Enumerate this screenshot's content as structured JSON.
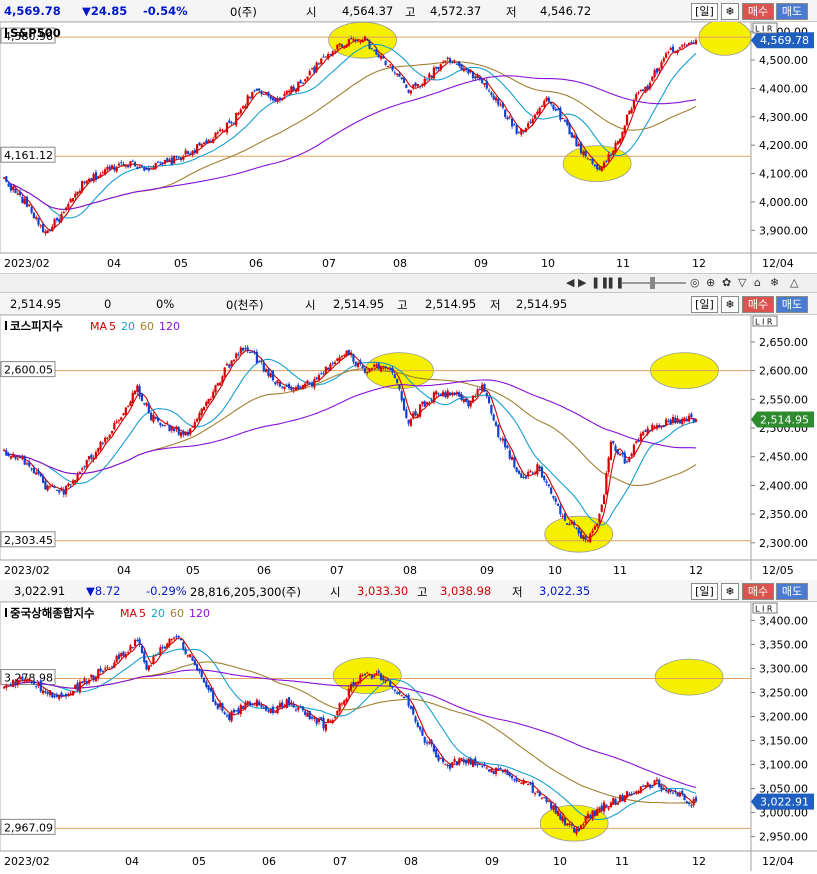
{
  "colors": {
    "up": "#d80000",
    "down": "#1040d0",
    "ma5": "#d00000",
    "ma20": "#16a0d0",
    "ma60": "#a08030",
    "ma120": "#8a10d8",
    "hline": "#e0a060",
    "highlight": "#f4f000"
  },
  "panels": [
    {
      "info": {
        "price": "4,569.78",
        "change": "▼24.85",
        "pct": "-0.54%",
        "volume": "0(주)",
        "open_label": "시",
        "open": "4,564.37",
        "high_label": "고",
        "high": "4,572.37",
        "low_label": "저",
        "low": "4,546.72"
      },
      "buttons": {
        "period": "[일]",
        "gear": "❄",
        "buy": "매수",
        "sell": "매도"
      },
      "title": "S&P500",
      "ma_legend": [],
      "hlines": [
        {
          "label": "4,580.96",
          "value": 4580.96
        },
        {
          "label": "4,161.12",
          "value": 4161.12
        }
      ],
      "current": {
        "label": "4,569.78",
        "value": 4569.78
      },
      "months": [
        "2023/02",
        "04",
        "05",
        "06",
        "07",
        "08",
        "09",
        "10",
        "11",
        "12",
        "12/04"
      ],
      "chart_data": {
        "type": "candlestick",
        "title": "S&P500",
        "ylim": [
          3820,
          4620
        ],
        "yticks": [
          3900,
          4000,
          4100,
          4200,
          4300,
          4400,
          4500,
          4600
        ],
        "ytick_labels": [
          "3,900.00",
          "4,000.00",
          "4,100.00",
          "4,200.00",
          "4,300.00",
          "4,400.00",
          "4,500.00",
          "4,600.00"
        ],
        "months": [
          "2023/02",
          "04",
          "05",
          "06",
          "07",
          "08",
          "09",
          "10",
          "11",
          "12"
        ],
        "anchors": [
          [
            0,
            4080
          ],
          [
            10,
            3990
          ],
          [
            18,
            3890
          ],
          [
            26,
            3960
          ],
          [
            34,
            4060
          ],
          [
            44,
            4110
          ],
          [
            52,
            4140
          ],
          [
            62,
            4120
          ],
          [
            72,
            4140
          ],
          [
            82,
            4180
          ],
          [
            92,
            4230
          ],
          [
            100,
            4290
          ],
          [
            108,
            4390
          ],
          [
            118,
            4360
          ],
          [
            126,
            4400
          ],
          [
            134,
            4460
          ],
          [
            142,
            4530
          ],
          [
            150,
            4570
          ],
          [
            156,
            4580
          ],
          [
            162,
            4520
          ],
          [
            170,
            4460
          ],
          [
            176,
            4390
          ],
          [
            182,
            4420
          ],
          [
            188,
            4470
          ],
          [
            194,
            4500
          ],
          [
            200,
            4460
          ],
          [
            206,
            4440
          ],
          [
            212,
            4380
          ],
          [
            218,
            4310
          ],
          [
            224,
            4240
          ],
          [
            230,
            4300
          ],
          [
            236,
            4360
          ],
          [
            240,
            4330
          ],
          [
            246,
            4250
          ],
          [
            252,
            4170
          ],
          [
            258,
            4120
          ],
          [
            262,
            4140
          ],
          [
            268,
            4230
          ],
          [
            274,
            4360
          ],
          [
            280,
            4410
          ],
          [
            288,
            4520
          ],
          [
            296,
            4560
          ],
          [
            301,
            4570
          ]
        ],
        "highlights": [
          {
            "i": 156,
            "v": 4570
          },
          {
            "i": 258,
            "v": 4135
          },
          {
            "i": 302,
            "v": 4580
          }
        ]
      }
    },
    {
      "info": {
        "price": "2,514.95",
        "change": "0",
        "pct": "0%",
        "volume": "0(천주)",
        "open_label": "시",
        "open": "2,514.95",
        "high_label": "고",
        "high": "2,514.95",
        "low_label": "저",
        "low": "2,514.95"
      },
      "buttons": {
        "period": "[일]",
        "gear": "❄",
        "buy": "매수",
        "sell": "매도"
      },
      "title": "코스피지수",
      "ma_legend": [
        "MA",
        "5",
        "20",
        "60",
        "120"
      ],
      "hlines": [
        {
          "label": "2,600.05",
          "value": 2600.05
        },
        {
          "label": "2,303.45",
          "value": 2303.45
        }
      ],
      "current": {
        "label": "2,514.95",
        "value": 2514.95
      },
      "months": [
        "2023/02",
        "04",
        "05",
        "06",
        "07",
        "08",
        "09",
        "10",
        "11",
        "12",
        "12/05"
      ],
      "chart_data": {
        "type": "candlestick",
        "title": "코스피지수",
        "ylim": [
          2270,
          2690
        ],
        "yticks": [
          2300,
          2350,
          2400,
          2450,
          2500,
          2550,
          2600,
          2650
        ],
        "ytick_labels": [
          "2,300.00",
          "2,350.00",
          "2,400.00",
          "2,450.00",
          "2,500.00",
          "2,550.00",
          "2,600.00",
          "2,650.00"
        ],
        "months": [
          "2023/02",
          "04",
          "05",
          "06",
          "07",
          "08",
          "09",
          "10",
          "11",
          "12"
        ],
        "anchors": [
          [
            0,
            2460
          ],
          [
            10,
            2440
          ],
          [
            18,
            2400
          ],
          [
            26,
            2390
          ],
          [
            34,
            2430
          ],
          [
            44,
            2480
          ],
          [
            52,
            2530
          ],
          [
            58,
            2570
          ],
          [
            64,
            2520
          ],
          [
            72,
            2500
          ],
          [
            80,
            2490
          ],
          [
            88,
            2540
          ],
          [
            96,
            2600
          ],
          [
            104,
            2640
          ],
          [
            110,
            2620
          ],
          [
            118,
            2580
          ],
          [
            126,
            2570
          ],
          [
            134,
            2580
          ],
          [
            142,
            2610
          ],
          [
            150,
            2630
          ],
          [
            156,
            2600
          ],
          [
            162,
            2610
          ],
          [
            170,
            2590
          ],
          [
            176,
            2510
          ],
          [
            182,
            2540
          ],
          [
            188,
            2560
          ],
          [
            196,
            2560
          ],
          [
            202,
            2540
          ],
          [
            208,
            2580
          ],
          [
            214,
            2500
          ],
          [
            220,
            2450
          ],
          [
            226,
            2410
          ],
          [
            232,
            2430
          ],
          [
            238,
            2390
          ],
          [
            244,
            2340
          ],
          [
            250,
            2320
          ],
          [
            254,
            2300
          ],
          [
            260,
            2360
          ],
          [
            264,
            2480
          ],
          [
            270,
            2440
          ],
          [
            276,
            2480
          ],
          [
            282,
            2500
          ],
          [
            288,
            2510
          ],
          [
            296,
            2515
          ]
        ],
        "highlights": [
          {
            "i": 172,
            "v": 2600
          },
          {
            "i": 250,
            "v": 2315
          },
          {
            "i": 296,
            "v": 2600
          }
        ]
      }
    },
    {
      "info": {
        "price": "3,022.91",
        "change": "▼8.72",
        "pct": "-0.29%",
        "volume": "28,816,205,300(주)",
        "open_label": "시",
        "open": "3,033.30",
        "high_label": "고",
        "high": "3,038.98",
        "low_label": "저",
        "low": "3,022.35"
      },
      "buttons": {
        "period": "[일]",
        "gear": "❄",
        "buy": "매수",
        "sell": "매도"
      },
      "title": "중국상해종합지수",
      "ma_legend": [
        "MA",
        "5",
        "20",
        "60",
        "120"
      ],
      "hlines": [
        {
          "label": "3,278.98",
          "value": 3278.98
        },
        {
          "label": "2,967.09",
          "value": 2967.09
        }
      ],
      "current": {
        "label": "3,022.91",
        "value": 3022.91
      },
      "months": [
        "2023/02",
        "04",
        "05",
        "06",
        "07",
        "08",
        "09",
        "10",
        "11",
        "12",
        "12/04"
      ],
      "chart_data": {
        "type": "candlestick",
        "title": "중국상해종합지수",
        "ylim": [
          2920,
          3430
        ],
        "yticks": [
          2950,
          3000,
          3050,
          3100,
          3150,
          3200,
          3250,
          3300,
          3350,
          3400
        ],
        "ytick_labels": [
          "2,950.00",
          "3,000.00",
          "3,050.00",
          "3,100.00",
          "3,150.00",
          "3,200.00",
          "3,250.00",
          "3,300.00",
          "3,350.00",
          "3,400.00"
        ],
        "months": [
          "2023/02",
          "04",
          "05",
          "06",
          "07",
          "08",
          "09",
          "10",
          "11",
          "12"
        ],
        "anchors": [
          [
            0,
            3260
          ],
          [
            10,
            3280
          ],
          [
            18,
            3250
          ],
          [
            26,
            3240
          ],
          [
            34,
            3270
          ],
          [
            44,
            3300
          ],
          [
            52,
            3330
          ],
          [
            58,
            3360
          ],
          [
            62,
            3300
          ],
          [
            68,
            3340
          ],
          [
            74,
            3370
          ],
          [
            80,
            3330
          ],
          [
            86,
            3280
          ],
          [
            92,
            3230
          ],
          [
            98,
            3200
          ],
          [
            104,
            3220
          ],
          [
            110,
            3230
          ],
          [
            116,
            3210
          ],
          [
            122,
            3230
          ],
          [
            128,
            3220
          ],
          [
            134,
            3200
          ],
          [
            140,
            3180
          ],
          [
            146,
            3220
          ],
          [
            152,
            3270
          ],
          [
            158,
            3290
          ],
          [
            164,
            3280
          ],
          [
            170,
            3260
          ],
          [
            176,
            3230
          ],
          [
            182,
            3160
          ],
          [
            188,
            3120
          ],
          [
            194,
            3100
          ],
          [
            200,
            3110
          ],
          [
            206,
            3100
          ],
          [
            212,
            3090
          ],
          [
            218,
            3080
          ],
          [
            224,
            3070
          ],
          [
            230,
            3050
          ],
          [
            236,
            3030
          ],
          [
            242,
            2990
          ],
          [
            248,
            2960
          ],
          [
            254,
            2990
          ],
          [
            260,
            3010
          ],
          [
            268,
            3030
          ],
          [
            276,
            3050
          ],
          [
            284,
            3060
          ],
          [
            292,
            3040
          ],
          [
            298,
            3023
          ]
        ],
        "highlights": [
          {
            "i": 158,
            "v": 3285
          },
          {
            "i": 248,
            "v": 2978
          },
          {
            "i": 298,
            "v": 3282
          }
        ]
      }
    }
  ],
  "scrollbar": {
    "zoom_label": "- ------ +",
    "icons": [
      "◀",
      "▶",
      "❚❚",
      "❚❚",
      "◎",
      "✿",
      "⊕",
      "▽",
      "⌂",
      "❄",
      "△"
    ]
  },
  "axis_flags": {
    "label": "L I R"
  }
}
